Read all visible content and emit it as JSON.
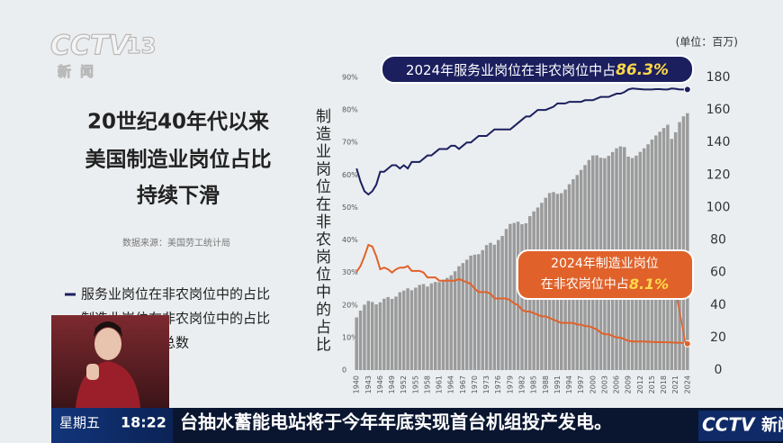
{
  "broadcast": {
    "logo": "CCTV",
    "channel": "13",
    "logo_sub": "新闻",
    "headline": [
      "20世纪40年代以来",
      "美国制造业岗位占比",
      "持续下滑"
    ],
    "source": "数据来源：美国劳工统计局",
    "weekday": "星期五",
    "time": "18:22",
    "ticker": "台抽水蓄能电站将于今年年底实现首台机组投产发电。",
    "ticker_logo": "CCTV",
    "ticker_logo_sub": "新闻"
  },
  "chart_data": {
    "type": "bar_line",
    "y_label": "制造业岗位在非农岗位中的占比",
    "y2_unit": "(单位：百万)",
    "categories": [
      "1940",
      null,
      null,
      "1943",
      null,
      null,
      "1946",
      null,
      null,
      "1949",
      null,
      null,
      "1952",
      null,
      null,
      "1955",
      null,
      null,
      "1958",
      null,
      null,
      "1961",
      null,
      null,
      "1964",
      null,
      null,
      "1967",
      null,
      null,
      "1970",
      null,
      null,
      "1973",
      null,
      null,
      "1976",
      null,
      null,
      "1979",
      null,
      null,
      "1982",
      null,
      null,
      "1985",
      null,
      null,
      "1988",
      null,
      null,
      "1991",
      null,
      null,
      "1994",
      null,
      null,
      "1997",
      null,
      null,
      "2000",
      null,
      null,
      "2003",
      null,
      null,
      "2006",
      null,
      null,
      "2009",
      null,
      null,
      "2012",
      null,
      null,
      "2015",
      null,
      null,
      "2018",
      null,
      null,
      "2021",
      null,
      null,
      "2024"
    ],
    "series": [
      {
        "name": "服务业岗位在非农岗位中的占比",
        "kind": "line",
        "axis": "y",
        "color": "#1b1f5e",
        "values": [
          62,
          58,
          55,
          54,
          55,
          57,
          61,
          61,
          62,
          63,
          63,
          62,
          63,
          62,
          64,
          64,
          64,
          65,
          66,
          66,
          67,
          68,
          68,
          68,
          69,
          69,
          68,
          69,
          70,
          70,
          71,
          72,
          72,
          72,
          73,
          74,
          74,
          74,
          74,
          74,
          75,
          76,
          77,
          78,
          78,
          79,
          80,
          80,
          80,
          80.5,
          81,
          82,
          82,
          82,
          82.5,
          82.5,
          82.5,
          82.5,
          83,
          83,
          83,
          83.5,
          84,
          84,
          84,
          84.5,
          85,
          85,
          85.5,
          86.3,
          86.6,
          86.5,
          86.4,
          86.3,
          86.3,
          86.3,
          86.4,
          86.4,
          86.3,
          86.3,
          86.6,
          86.5,
          86.3,
          86.3,
          86.3
        ]
      },
      {
        "name": "制造业岗位在非农岗位中的占比",
        "kind": "line",
        "axis": "y",
        "color": "#e0622a",
        "values": [
          30.2,
          32,
          35,
          38.5,
          38,
          35,
          31,
          31.5,
          31,
          30,
          31,
          31.5,
          31.5,
          32,
          30.5,
          30.5,
          30.5,
          30,
          28.5,
          28.5,
          28.5,
          27.5,
          27.5,
          27.5,
          27.5,
          27.5,
          28,
          27.5,
          27,
          26.5,
          25,
          24,
          24,
          24,
          23.5,
          22,
          22,
          22,
          22,
          21.5,
          20.5,
          20,
          18.5,
          18,
          18,
          17.5,
          17,
          16.5,
          16.5,
          16,
          15.5,
          15,
          14.5,
          14.5,
          14.5,
          14.5,
          14,
          14,
          13.5,
          13.5,
          13,
          12.5,
          11.5,
          11,
          11,
          10.5,
          10,
          10,
          9.5,
          9,
          8.8,
          8.8,
          8.8,
          8.8,
          8.7,
          8.7,
          8.6,
          8.6,
          8.6,
          8.5,
          8.5,
          8.4,
          8.4,
          8.3,
          8.1
        ]
      },
      {
        "name": "总数",
        "kind": "bar",
        "axis": "y2",
        "color": "#9b9b9b",
        "values": [
          32.4,
          36.6,
          40.2,
          42.5,
          41.9,
          40.4,
          41.7,
          43.9,
          44.9,
          43.8,
          45.2,
          47.9,
          48.9,
          50.3,
          49.1,
          50.7,
          52.4,
          52.9,
          51.4,
          53.3,
          54.2,
          54.1,
          55.6,
          56.7,
          58.3,
          60.8,
          63.9,
          65.8,
          67.9,
          70.4,
          71.0,
          71.3,
          73.8,
          76.9,
          78.3,
          77.1,
          80.0,
          82.5,
          86.8,
          89.9,
          90.5,
          91.3,
          89.7,
          90.3,
          94.7,
          97.6,
          100,
          102.9,
          106.0,
          108.9,
          109.5,
          108.4,
          108.8,
          111.0,
          114.3,
          117.4,
          120.0,
          123.1,
          126.1,
          129.2,
          132.0,
          132.1,
          130.6,
          130.3,
          131.8,
          134.1,
          136.4,
          137.6,
          137.2,
          131.3,
          130.4,
          131.9,
          134.2,
          136.4,
          138.9,
          141.8,
          144.3,
          146.6,
          148.9,
          150.9,
          142.2,
          146.3,
          152.5,
          156.1,
          158.0
        ]
      }
    ],
    "ylim": [
      0,
      90
    ],
    "yticks": [
      0,
      {
        "value": 10,
        "label": "10%"
      },
      {
        "value": 20,
        "label": "20%"
      },
      {
        "value": 30,
        "label": "30%"
      },
      {
        "value": 40,
        "label": "40%"
      },
      {
        "value": 50,
        "label": "50%"
      },
      {
        "value": 60,
        "label": "60%"
      },
      {
        "value": 70,
        "label": "70%"
      },
      {
        "value": 80,
        "label": "80%"
      },
      {
        "value": 90,
        "label": "90%"
      }
    ],
    "y2lim": [
      0,
      180
    ],
    "y2ticks": [
      0,
      20,
      40,
      60,
      80,
      100,
      120,
      140,
      160,
      180
    ],
    "annotations": [
      {
        "text": "2024年服务业岗位在非农岗位中占",
        "value_label": "86.3%"
      },
      {
        "text": [
          "2024年制造业岗位",
          "在非农岗位中占"
        ],
        "value_label": "8.1%"
      }
    ]
  }
}
